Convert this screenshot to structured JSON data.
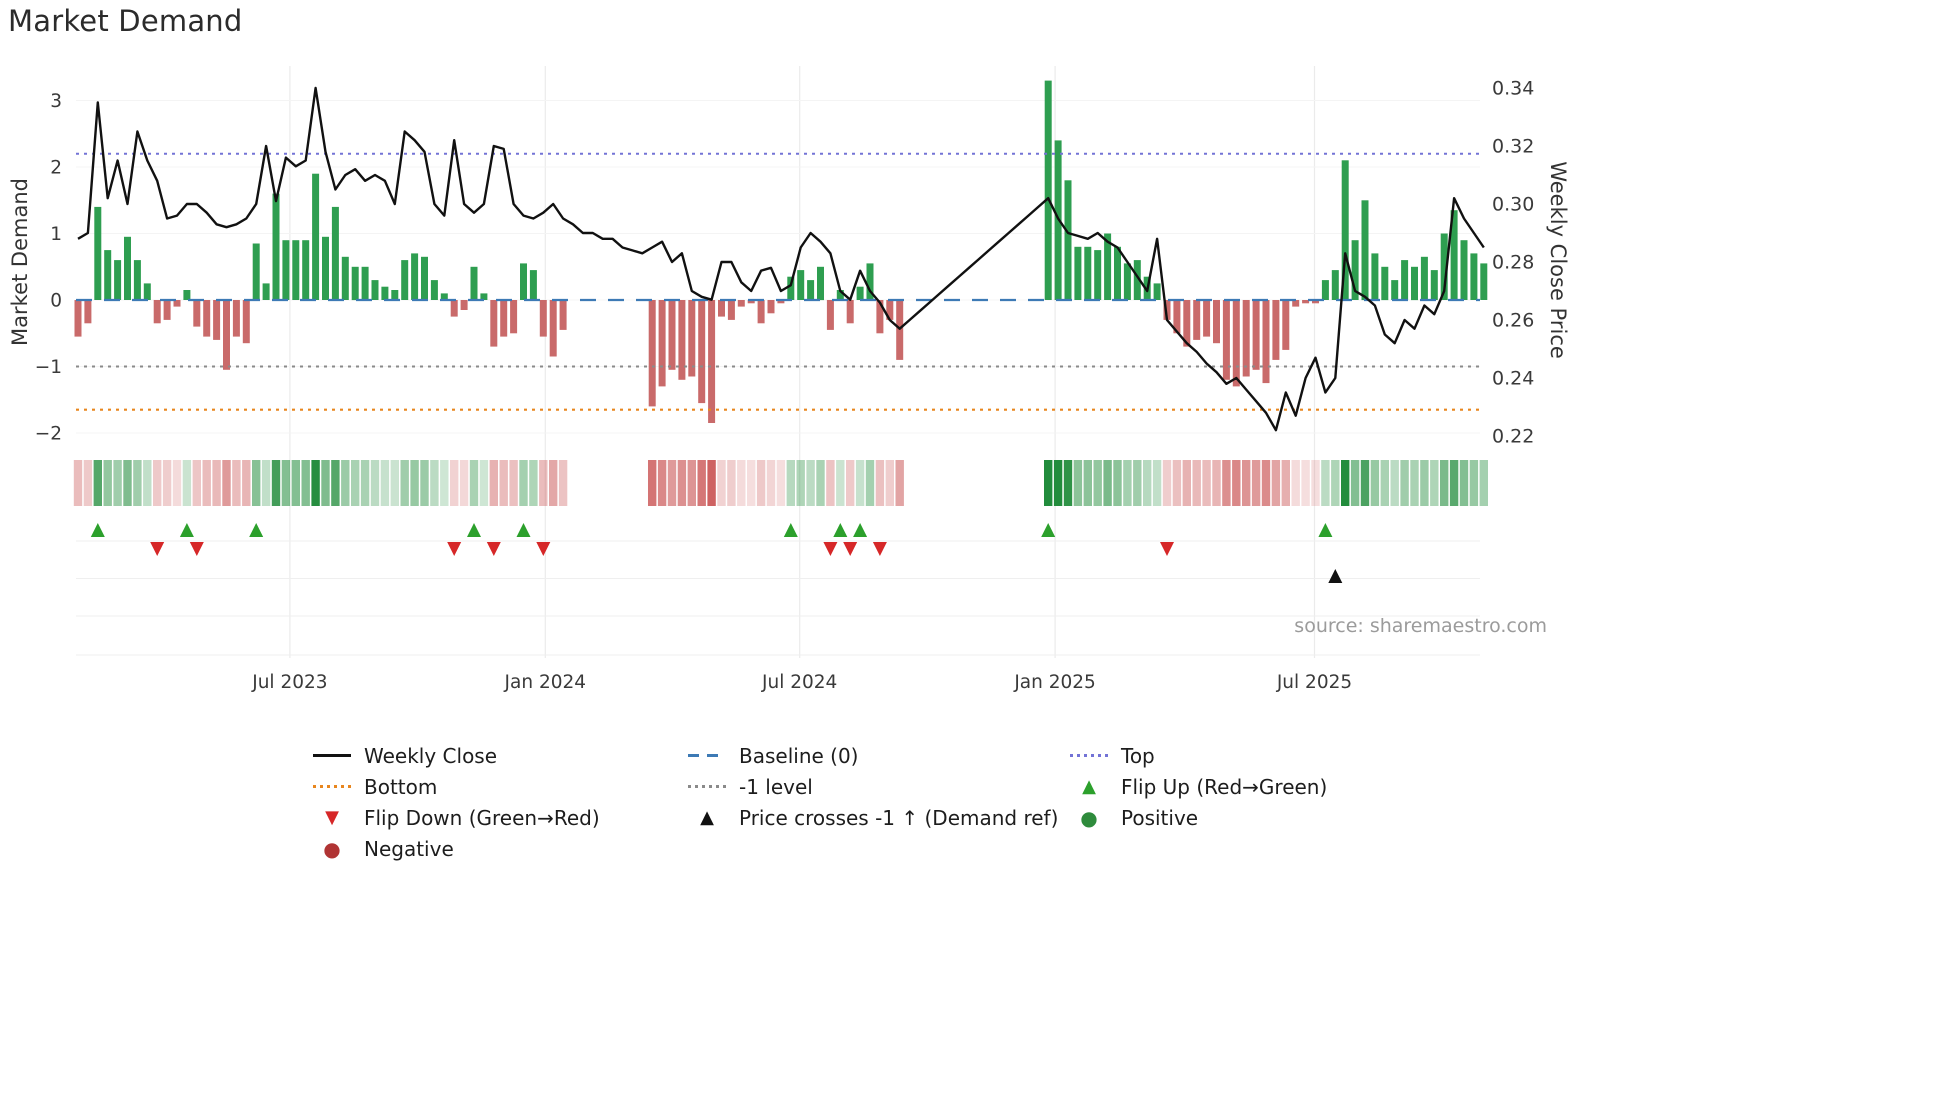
{
  "colors": {
    "bar_positive": "#2e9e50",
    "bar_negative": "#c96a6a",
    "price_line": "#111111",
    "top_line": "#7373d6",
    "baseline_line": "#3d7ab5",
    "minus_one_line": "#8a8a8a",
    "bottom_line": "#e8861e",
    "flip_up": "#2ca02c",
    "flip_down": "#d62728",
    "price_cross": "#111111",
    "positive_dot": "#2e8b3c",
    "negative_dot": "#b03434",
    "heat_positive": "#228c3c",
    "heat_negative": "#cc5c5c",
    "grid": "#ebebeb"
  },
  "chart_data": {
    "type": "bar+line",
    "title": "Market Demand",
    "xlabel": "",
    "ylabel_left": "Market Demand",
    "ylabel_right": "Weekly Close Price",
    "source": "source: sharemaestro.com",
    "x_tick_labels": [
      "Jul 2023",
      "Jan 2024",
      "Jul 2024",
      "Jan 2025",
      "Jul 2025"
    ],
    "x_tick_weeks": [
      21.4,
      47.2,
      72.9,
      98.7,
      124.9
    ],
    "left_ticks": [
      3,
      2,
      1,
      0,
      -1,
      -2
    ],
    "right_ticks": [
      "0.34",
      "0.32",
      "0.30",
      "0.28",
      "0.26",
      "0.24",
      "0.22"
    ],
    "ylim_left": [
      -2.35,
      3.55
    ],
    "ylim_right": [
      0.2125,
      0.3475
    ],
    "grid": true,
    "legend_position": "bottom",
    "reference_lines": {
      "top": 2.2,
      "baseline": 0,
      "minus_one": -1,
      "bottom": -1.65
    },
    "weeks": 143,
    "demand": [
      -0.55,
      -0.35,
      1.4,
      0.75,
      0.6,
      0.95,
      0.6,
      0.25,
      -0.35,
      -0.3,
      -0.1,
      0.15,
      -0.4,
      -0.55,
      -0.6,
      -1.05,
      -0.55,
      -0.65,
      0.85,
      0.25,
      1.6,
      0.9,
      0.9,
      0.9,
      1.9,
      0.95,
      1.4,
      0.65,
      0.5,
      0.5,
      0.3,
      0.2,
      0.15,
      0.6,
      0.7,
      0.65,
      0.3,
      0.1,
      -0.25,
      -0.15,
      0.5,
      0.1,
      -0.7,
      -0.55,
      -0.5,
      0.55,
      0.45,
      -0.55,
      -0.85,
      -0.45,
      null,
      null,
      null,
      null,
      null,
      null,
      null,
      null,
      -1.6,
      -1.3,
      -1.05,
      -1.2,
      -1.15,
      -1.55,
      -1.85,
      -0.25,
      -0.3,
      -0.1,
      -0.05,
      -0.35,
      -0.2,
      -0.05,
      0.35,
      0.45,
      0.3,
      0.5,
      -0.45,
      0.15,
      -0.35,
      0.2,
      0.55,
      -0.5,
      -0.3,
      -0.9,
      null,
      null,
      null,
      null,
      null,
      null,
      null,
      null,
      null,
      null,
      null,
      null,
      null,
      null,
      3.3,
      2.4,
      1.8,
      0.8,
      0.8,
      0.75,
      1.0,
      0.8,
      0.55,
      0.6,
      0.35,
      0.25,
      -0.3,
      -0.5,
      -0.7,
      -0.6,
      -0.55,
      -0.65,
      -1.2,
      -1.3,
      -1.15,
      -1.05,
      -1.25,
      -0.9,
      -0.75,
      -0.1,
      -0.05,
      -0.05,
      0.3,
      0.45,
      2.1,
      0.9,
      1.5,
      0.7,
      0.5,
      0.3,
      0.6,
      0.5,
      0.65,
      0.45,
      1.0,
      1.35,
      0.9,
      0.7,
      0.55
    ],
    "weekly_close": [
      0.288,
      0.29,
      0.335,
      0.302,
      0.315,
      0.3,
      0.325,
      0.315,
      0.308,
      0.295,
      0.296,
      0.3,
      0.3,
      0.297,
      0.293,
      0.292,
      0.293,
      0.295,
      0.3,
      0.32,
      0.301,
      0.316,
      0.313,
      0.315,
      0.34,
      0.318,
      0.305,
      0.31,
      0.312,
      0.308,
      0.31,
      0.308,
      0.3,
      0.325,
      0.322,
      0.318,
      0.3,
      0.296,
      0.322,
      0.3,
      0.297,
      0.3,
      0.32,
      0.319,
      0.3,
      0.296,
      0.295,
      0.297,
      0.3,
      0.295,
      0.293,
      0.29,
      0.29,
      0.288,
      0.288,
      0.285,
      0.284,
      0.283,
      0.285,
      0.287,
      0.28,
      0.283,
      0.27,
      0.268,
      0.267,
      0.28,
      0.28,
      0.273,
      0.27,
      0.277,
      0.278,
      0.27,
      0.272,
      0.285,
      0.29,
      0.287,
      0.283,
      0.27,
      0.267,
      0.277,
      0.27,
      0.266,
      0.26,
      0.257,
      0.26,
      0.263,
      0.266,
      0.269,
      0.272,
      0.275,
      0.278,
      0.281,
      0.284,
      0.287,
      0.29,
      0.293,
      0.296,
      0.299,
      0.302,
      0.295,
      0.29,
      0.289,
      0.288,
      0.29,
      0.287,
      0.285,
      0.28,
      0.275,
      0.27,
      0.288,
      0.26,
      0.256,
      0.252,
      0.249,
      0.245,
      0.242,
      0.238,
      0.24,
      0.236,
      0.232,
      0.228,
      0.222,
      0.235,
      0.227,
      0.24,
      0.247,
      0.235,
      0.24,
      0.283,
      0.27,
      0.268,
      0.265,
      0.255,
      0.252,
      0.26,
      0.257,
      0.265,
      0.262,
      0.27,
      0.302,
      0.295,
      0.29,
      0.285
    ],
    "flip_up_weeks": [
      2,
      11,
      18,
      40,
      45,
      72,
      77,
      79,
      98,
      126
    ],
    "flip_down_weeks": [
      8,
      12,
      38,
      42,
      47,
      76,
      78,
      81,
      110
    ],
    "price_cross_up_weeks": [
      127
    ],
    "legend": {
      "weekly_close": "Weekly Close",
      "baseline": "Baseline (0)",
      "top": "Top",
      "bottom": "Bottom",
      "minus_one": "-1 level",
      "flip_up": "Flip Up (Red→Green)",
      "flip_down": "Flip Down (Green→Red)",
      "price_cross": "Price crosses -1 ↑ (Demand ref)",
      "positive": "Positive",
      "negative": "Negative"
    }
  }
}
